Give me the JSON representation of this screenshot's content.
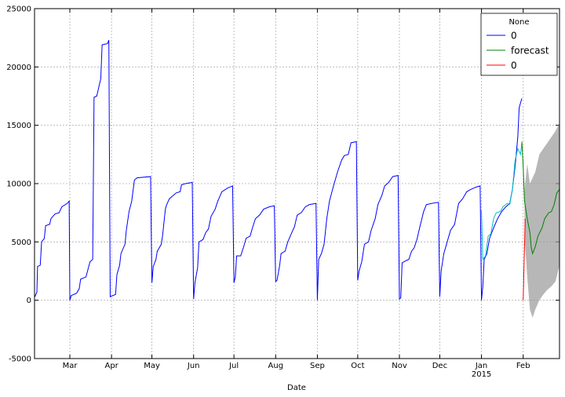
{
  "chart_data": {
    "type": "line",
    "xlabel": "Date",
    "xlim": [
      1.75,
      392
    ],
    "ylim": [
      -5000,
      25000
    ],
    "xticks": [
      {
        "value": 28,
        "label": "Mar"
      },
      {
        "value": 59,
        "label": "Apr"
      },
      {
        "value": 89,
        "label": "May"
      },
      {
        "value": 120,
        "label": "Jun"
      },
      {
        "value": 150,
        "label": "Jul"
      },
      {
        "value": 181,
        "label": "Aug"
      },
      {
        "value": 212,
        "label": "Sep"
      },
      {
        "value": 242,
        "label": "Oct"
      },
      {
        "value": 273,
        "label": "Nov"
      },
      {
        "value": 303,
        "label": "Dec"
      },
      {
        "value": 334,
        "label": "Jan\n2015"
      },
      {
        "value": 365,
        "label": "Feb"
      }
    ],
    "yticks": [
      -5000,
      0,
      5000,
      10000,
      15000,
      20000,
      25000
    ],
    "grid": true,
    "legend_title": "None",
    "legend_loc": "upper right",
    "series": [
      {
        "name": "0",
        "color": "#0000ff",
        "x": [
          2,
          3.5,
          4,
          6,
          7,
          9,
          10,
          13,
          14,
          17,
          20,
          22,
          26,
          27.5,
          28,
          29,
          31,
          33,
          35,
          36,
          40,
          43,
          45,
          46,
          48,
          50,
          51,
          52,
          56,
          57,
          58,
          60,
          62,
          63,
          65,
          66,
          69,
          70,
          72,
          74,
          76,
          78,
          88,
          89,
          90,
          92,
          93,
          96,
          97,
          99,
          100,
          102,
          104,
          107,
          110,
          111,
          114,
          119,
          120,
          121,
          123,
          124,
          127,
          129,
          131,
          133,
          136,
          138,
          141,
          145,
          149,
          150,
          151,
          152,
          155,
          157,
          159,
          162,
          164,
          166,
          169,
          172,
          176,
          180,
          181,
          182,
          184,
          185,
          188,
          190,
          193,
          195,
          197,
          200,
          203,
          206,
          211,
          212,
          213,
          215,
          217,
          219,
          221,
          224,
          227,
          230,
          232,
          235,
          237,
          241,
          242,
          243,
          245,
          247,
          250,
          252,
          255,
          257,
          260,
          262,
          265,
          268,
          272,
          273,
          274,
          275,
          278,
          280,
          282,
          284,
          286,
          288,
          291,
          293,
          297,
          302,
          303,
          304,
          306,
          308,
          311,
          314,
          317,
          320,
          323,
          326,
          330,
          333,
          334,
          335,
          336,
          338,
          340,
          343,
          346,
          349,
          352,
          355,
          357,
          359,
          361,
          362,
          364
        ],
        "values": [
          300,
          700,
          2900,
          3000,
          5000,
          5300,
          6400,
          6500,
          7000,
          7400,
          7500,
          8000,
          8300,
          8500,
          0,
          400,
          500,
          600,
          1000,
          1800,
          2000,
          3300,
          3500,
          17400,
          17500,
          18500,
          19000,
          21900,
          22000,
          22300,
          300,
          400,
          500,
          2200,
          3000,
          4000,
          4800,
          6000,
          7600,
          8500,
          10300,
          10500,
          10600,
          1500,
          2900,
          3500,
          4200,
          4800,
          5600,
          7800,
          8200,
          8700,
          8900,
          9200,
          9300,
          9900,
          10000,
          10100,
          100,
          1500,
          2800,
          5000,
          5200,
          5800,
          6100,
          7200,
          7800,
          8500,
          9300,
          9600,
          9800,
          1500,
          2000,
          3800,
          3800,
          4500,
          5300,
          5500,
          6300,
          7000,
          7300,
          7800,
          8000,
          8100,
          1600,
          1700,
          3000,
          4000,
          4200,
          5000,
          5800,
          6300,
          7300,
          7500,
          8000,
          8200,
          8300,
          0,
          3500,
          4000,
          4800,
          7000,
          8500,
          9800,
          11000,
          12000,
          12400,
          12500,
          13500,
          13600,
          1700,
          2500,
          3300,
          4800,
          5000,
          6000,
          7000,
          8200,
          9000,
          9800,
          10100,
          10600,
          10700,
          100,
          200,
          3200,
          3400,
          3500,
          4200,
          4500,
          5200,
          6200,
          7600,
          8200,
          8300,
          8400,
          300,
          2500,
          4000,
          4800,
          6000,
          6500,
          8300,
          8700,
          9300,
          9500,
          9700,
          9800,
          0,
          1200,
          3500,
          4000,
          5300,
          6200,
          7000,
          7600,
          8000,
          8300,
          9500,
          11500,
          14000,
          16500,
          17300
        ]
      },
      {
        "name": null,
        "color": "#00bfbf",
        "x": [
          334,
          335,
          337,
          339,
          341,
          343,
          345,
          348,
          350,
          353,
          355,
          357,
          359,
          361,
          363,
          364
        ],
        "values": [
          7700,
          3500,
          3800,
          5500,
          5700,
          7000,
          7500,
          7600,
          8000,
          8300,
          8200,
          9500,
          12000,
          13000,
          12500,
          13500
        ]
      },
      {
        "name": "forecast",
        "color": "#008000",
        "x": [
          364,
          365,
          366,
          368,
          370,
          371,
          372,
          374,
          376,
          379,
          381,
          384,
          386,
          388,
          390,
          392
        ],
        "values": [
          13600,
          11500,
          8500,
          7000,
          5800,
          4500,
          4000,
          4600,
          5500,
          6200,
          7000,
          7500,
          7600,
          8200,
          9200,
          9500
        ]
      },
      {
        "name": "0",
        "color": "#ff0000",
        "x": [
          365,
          366.5
        ],
        "values": [
          0,
          7000
        ]
      }
    ],
    "band": {
      "color": "#999999",
      "x": [
        366,
        368,
        370,
        372,
        374,
        377,
        380,
        383,
        386,
        389,
        392
      ],
      "upper": [
        9500,
        11700,
        10000,
        10500,
        11000,
        12500,
        13000,
        13500,
        14000,
        14500,
        15200
      ],
      "lower": [
        5500,
        2000,
        -800,
        -1500,
        -800,
        0,
        500,
        900,
        1200,
        1600,
        3000
      ]
    }
  }
}
